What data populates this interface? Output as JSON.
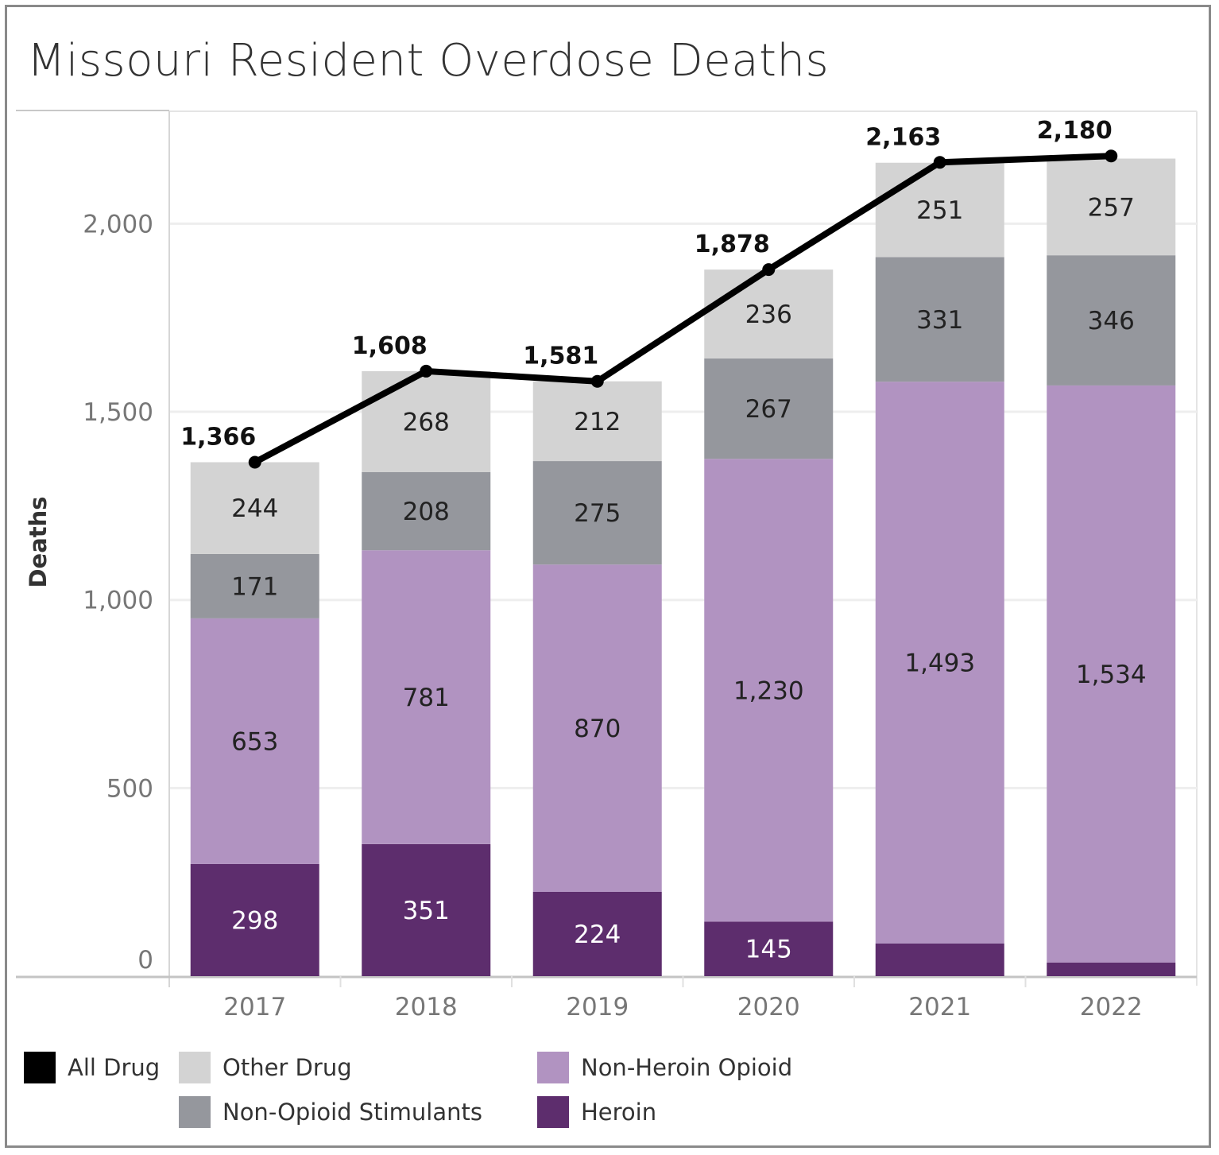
{
  "title": "Missouri Resident Overdose Deaths",
  "colors": {
    "all_drug": "#000000",
    "other_drug": "#d3d3d3",
    "non_opioid_stimulants": "#95979d",
    "non_heroin_opioid": "#b193c1",
    "heroin": "#5d2d6d",
    "gridline": "#eeeeee",
    "axis_text": "#777777"
  },
  "legend": {
    "items": [
      {
        "key": "all_drug",
        "label": "All Drug"
      },
      {
        "key": "other_drug",
        "label": "Other Drug"
      },
      {
        "key": "non_heroin_opioid",
        "label": "Non-Heroin Opioid"
      },
      {
        "key": "non_opioid_stimulants",
        "label": "Non-Opioid Stimulants"
      },
      {
        "key": "heroin",
        "label": "Heroin"
      }
    ]
  },
  "chart_data": {
    "type": "bar",
    "stacked": true,
    "title": "Missouri Resident Overdose Deaths",
    "xlabel": "",
    "ylabel": "Deaths",
    "ylim": [
      0,
      2300
    ],
    "yticks": [
      0,
      500,
      1000,
      1500,
      2000
    ],
    "ytick_labels": [
      "0",
      "500",
      "1,000",
      "1,500",
      "2,000"
    ],
    "categories": [
      "2017",
      "2018",
      "2019",
      "2020",
      "2021",
      "2022"
    ],
    "series": [
      {
        "name": "Heroin",
        "key": "heroin",
        "values": [
          298,
          351,
          224,
          145,
          87,
          36
        ],
        "labels": [
          "298",
          "351",
          "224",
          "145",
          "",
          ""
        ]
      },
      {
        "name": "Non-Heroin Opioid",
        "key": "non_heroin_opioid",
        "values": [
          653,
          781,
          870,
          1230,
          1493,
          1534
        ],
        "labels": [
          "653",
          "781",
          "870",
          "1,230",
          "1,493",
          "1,534"
        ]
      },
      {
        "name": "Non-Opioid Stimulants",
        "key": "non_opioid_stimulants",
        "values": [
          171,
          208,
          275,
          267,
          331,
          346
        ],
        "labels": [
          "171",
          "208",
          "275",
          "267",
          "331",
          "346"
        ]
      },
      {
        "name": "Other Drug",
        "key": "other_drug",
        "values": [
          244,
          268,
          212,
          236,
          251,
          257
        ],
        "labels": [
          "244",
          "268",
          "212",
          "236",
          "251",
          "257"
        ]
      }
    ],
    "line": {
      "name": "All Drug",
      "key": "all_drug",
      "values": [
        1366,
        1608,
        1581,
        1878,
        2163,
        2180
      ],
      "labels": [
        "1,366",
        "1,608",
        "1,581",
        "1,878",
        "2,163",
        "2,180"
      ]
    },
    "legend_position": "bottom-left"
  }
}
